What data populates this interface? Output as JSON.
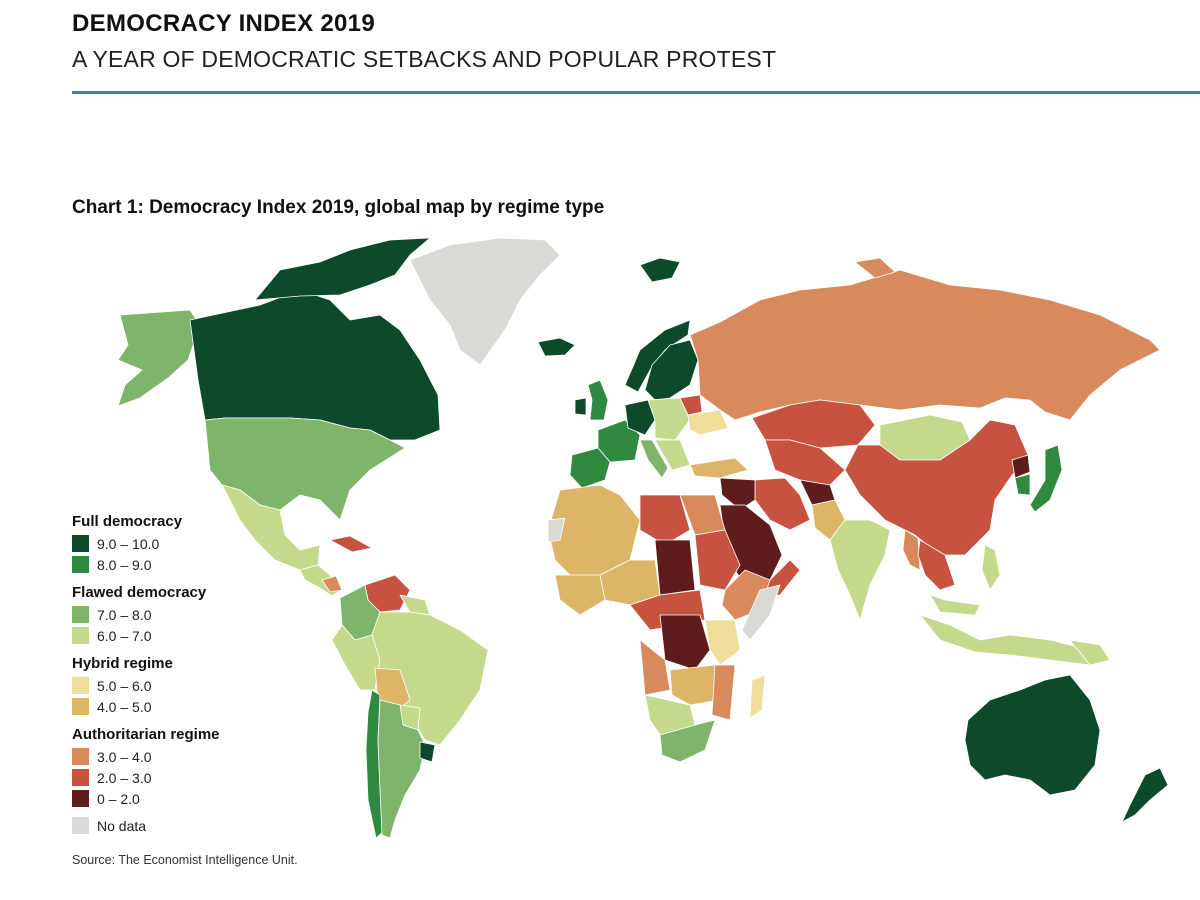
{
  "header": {
    "title": "DEMOCRACY INDEX 2019",
    "subtitle": "A YEAR OF DEMOCRATIC SETBACKS AND POPULAR PROTEST"
  },
  "chart": {
    "title": "Chart 1: Democracy Index 2019, global map by regime type",
    "source": "Source: The Economist Intelligence Unit."
  },
  "legend": {
    "groups": [
      {
        "title": "Full democracy",
        "items": [
          {
            "label": "9.0 – 10.0",
            "color": "#0d4a2c"
          },
          {
            "label": "8.0 – 9.0",
            "color": "#2f8a3f"
          }
        ]
      },
      {
        "title": "Flawed democracy",
        "items": [
          {
            "label": "7.0 – 8.0",
            "color": "#7fb56b"
          },
          {
            "label": "6.0 – 7.0",
            "color": "#c5d98d"
          }
        ]
      },
      {
        "title": "Hybrid regime",
        "items": [
          {
            "label": "5.0 – 6.0",
            "color": "#f1dd9a"
          },
          {
            "label": "4.0 – 5.0",
            "color": "#dcb566"
          }
        ]
      },
      {
        "title": "Authoritarian regime",
        "items": [
          {
            "label": "3.0 – 4.0",
            "color": "#d98a5d"
          },
          {
            "label": "2.0 – 3.0",
            "color": "#c7523f"
          },
          {
            "label": "0 – 2.0",
            "color": "#5e1d1c"
          }
        ]
      }
    ],
    "no_data": {
      "label": "No data",
      "color": "#d9d9d6"
    }
  },
  "map_data": {
    "type": "choropleth",
    "categories": [
      "9.0 – 10.0",
      "8.0 – 9.0",
      "7.0 – 8.0",
      "6.0 – 7.0",
      "5.0 – 6.0",
      "4.0 – 5.0",
      "3.0 – 4.0",
      "2.0 – 3.0",
      "0 – 2.0",
      "No data"
    ]
  }
}
